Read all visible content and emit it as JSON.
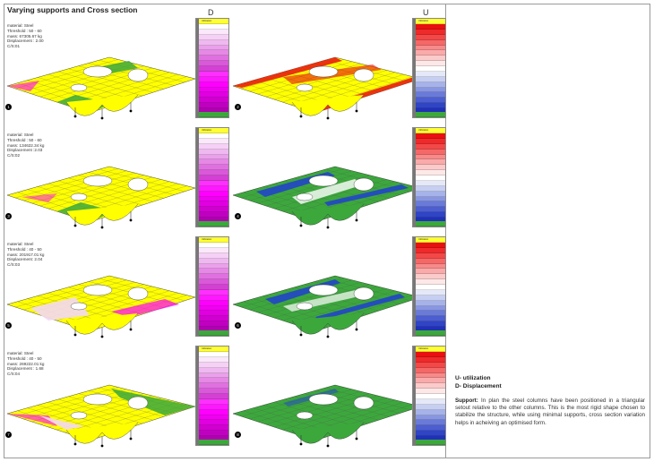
{
  "title": "Varying supports and Cross section",
  "columns": {
    "d": "D",
    "u": "U"
  },
  "rows": [
    {
      "info": [
        "material: Steel",
        "Threshold : 50 - 60",
        "mass: 67305.67 kg",
        "Displacement : 2.00",
        "C/S:01"
      ],
      "left_num": "1",
      "right_num": "2",
      "d_header": "Utilization",
      "u_header": "Utilization"
    },
    {
      "info": [
        "material: Steel",
        "Threshold : 50 - 60",
        "mass: 134622.34 kg",
        "Displacement :2.03",
        "C/S:02"
      ],
      "left_num": "3",
      "right_num": "4",
      "d_header": "Utilization",
      "u_header": "Utilization"
    },
    {
      "info": [
        "material: Steel",
        "Threshold : 40 - 50",
        "mass: 201917.01 kg",
        "Displacement: 2.04",
        "C/S:03"
      ],
      "left_num": "5",
      "right_num": "6",
      "d_header": "Utilization",
      "u_header": "Utilization"
    },
    {
      "info": [
        "material: Steel",
        "Threshold : 40 - 50",
        "mass: 269222.01 kg",
        "Displacement : 1.68",
        "C/S:04"
      ],
      "left_num": "7",
      "right_num": "8",
      "d_header": "Utilization",
      "u_header": "Utilization"
    }
  ],
  "colors": {
    "plate_yellow": "#ffff00",
    "plate_green": "#3ca83c",
    "magenta": "#ff00ff",
    "red": "#e81010",
    "blue": "#2040d0"
  },
  "legend_keys": {
    "u": "U- utilization",
    "d": "D- Displacement"
  },
  "note": {
    "label": "Support:",
    "text": "In plan the steel columns have been positioned in a triangular setout relative to the other columns. This is the most rigid shape chosen to stabilize the structure, while using minimal supports, cross section variation helps in acheiving an optimised form."
  }
}
